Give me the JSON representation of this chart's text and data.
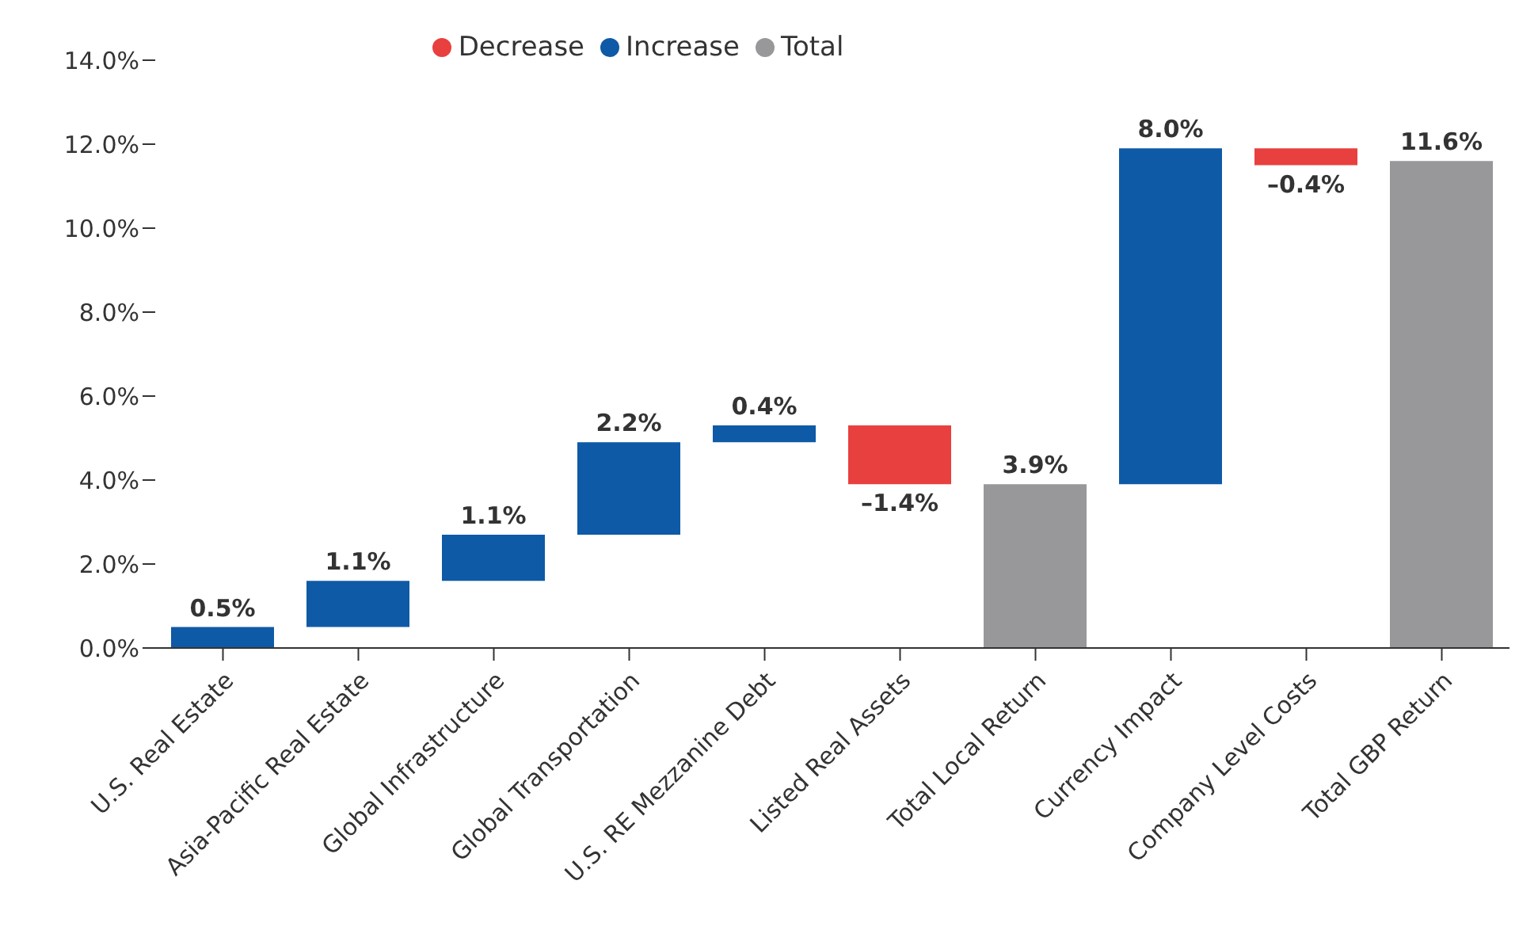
{
  "chart_data": {
    "type": "bar",
    "categories": [
      "U.S. Real Estate",
      "Asia-Pacific Real Estate",
      "Global Infrastructure",
      "Global Transportation",
      "U.S. RE Mezzanine Debt",
      "Listed Real Assets",
      "Total Local Return",
      "Currency Impact",
      "Company Level Costs",
      "Total GBP Return"
    ],
    "series": [
      {
        "name": "Increase",
        "color": "#0e5aa7",
        "values": [
          0.5,
          1.1,
          1.1,
          2.2,
          0.4,
          null,
          null,
          8.0,
          null,
          null
        ],
        "base": [
          0,
          0.5,
          1.6,
          2.7,
          4.9,
          null,
          null,
          3.9,
          null,
          null
        ],
        "value_labels": [
          "0.5%",
          "1.1%",
          "1.1%",
          "2.2%",
          "0.4%",
          null,
          null,
          "8.0%",
          null,
          null
        ]
      },
      {
        "name": "Decrease",
        "color": "#e8403f",
        "values": [
          null,
          null,
          null,
          null,
          null,
          -1.4,
          null,
          null,
          -0.4,
          null
        ],
        "base": [
          null,
          null,
          null,
          null,
          null,
          5.3,
          null,
          null,
          11.9,
          null
        ],
        "value_labels": [
          null,
          null,
          null,
          null,
          null,
          "–1.4%",
          null,
          null,
          "–0.4%",
          null
        ]
      },
      {
        "name": "Total",
        "color": "#98989b",
        "values": [
          null,
          null,
          null,
          null,
          null,
          null,
          3.9,
          null,
          null,
          11.6
        ],
        "value_labels": [
          null,
          null,
          null,
          null,
          null,
          null,
          "3.9%",
          null,
          null,
          "11.6%"
        ]
      }
    ],
    "ylim": [
      0,
      14
    ],
    "yticks": [
      {
        "value": 0,
        "label": "0.0%"
      },
      {
        "value": 2,
        "label": "2.0%"
      },
      {
        "value": 4,
        "label": "4.0%"
      },
      {
        "value": 6,
        "label": "6.0%"
      },
      {
        "value": 8,
        "label": "8.0%"
      },
      {
        "value": 10,
        "label": "10.0%"
      },
      {
        "value": 12,
        "label": "12.0%"
      },
      {
        "value": 14,
        "label": "14.0%"
      }
    ],
    "legend": "top",
    "grid": false
  }
}
